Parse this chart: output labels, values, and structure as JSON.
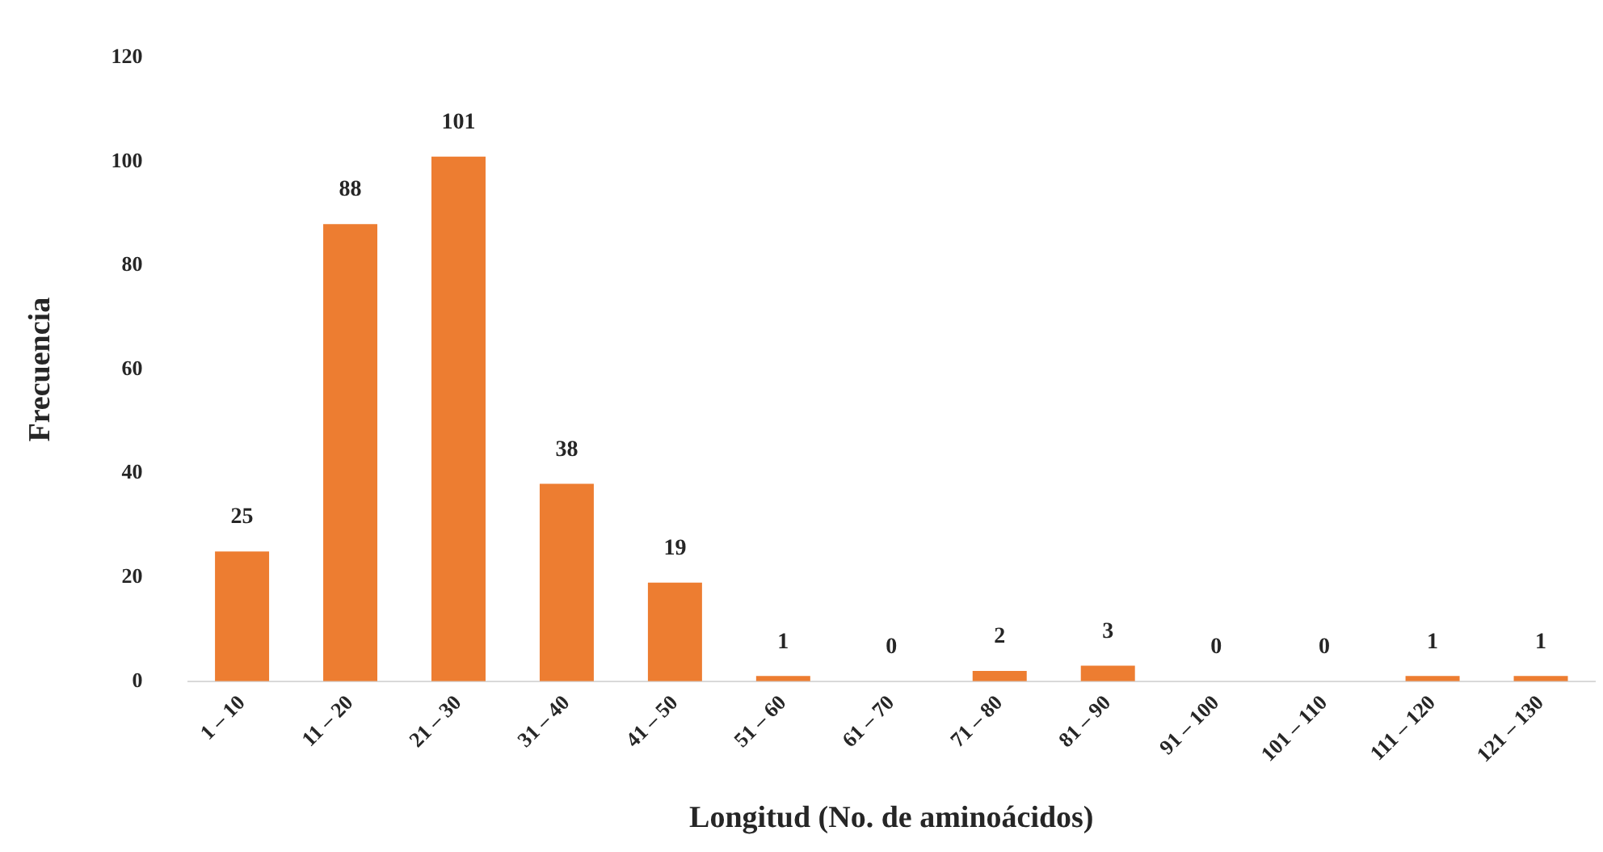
{
  "chart_data": {
    "type": "bar",
    "xlabel": "Longitud (No. de aminoácidos)",
    "ylabel": "Frecuencia",
    "categories": [
      "1 – 10",
      "11 – 20",
      "21 – 30",
      "31 – 40",
      "41 – 50",
      "51 – 60",
      "61 – 70",
      "71 – 80",
      "81 – 90",
      "91 – 100",
      "101 – 110",
      "111 – 120",
      "121 – 130"
    ],
    "values": [
      25,
      88,
      101,
      38,
      19,
      1,
      0,
      2,
      3,
      0,
      0,
      1,
      1
    ],
    "color": "#ed7d31",
    "ylim": [
      0,
      120
    ],
    "yticks": [
      0,
      20,
      40,
      60,
      80,
      100,
      120
    ],
    "data_labels": true,
    "grid": false,
    "legend": false
  }
}
